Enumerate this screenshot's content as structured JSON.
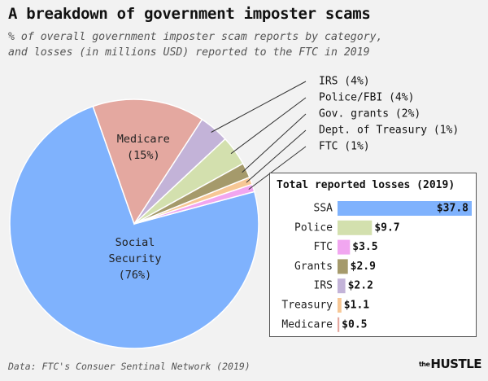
{
  "title": "A breakdown of government imposter scams",
  "subtitle": [
    "% of overall government imposter scam reports by category,",
    "and losses (in millions USD) reported to the FTC in 2019"
  ],
  "footer": "Data: FTC's Consuer Sentinal Network (2019)",
  "brand": {
    "small": "the",
    "name": "HUSTLE"
  },
  "chart_data": [
    {
      "type": "pie",
      "slices": [
        {
          "label_lines": [
            "Social",
            "Security",
            "(76%)"
          ],
          "value": 76,
          "color": "#7fb2fd",
          "inside": true,
          "label_color": "#222222"
        },
        {
          "label_lines": [
            "Medicare",
            "(15%)"
          ],
          "value": 15,
          "color": "#e4a8a0",
          "inside": true,
          "label_color": "#222222"
        },
        {
          "label": "IRS (4%)",
          "value": 4,
          "color": "#c3b3d8",
          "inside": false
        },
        {
          "label": "Police/FBI (4%)",
          "value": 4,
          "color": "#d3e0ae",
          "inside": false
        },
        {
          "label": "Gov. grants (2%)",
          "value": 2,
          "color": "#a59a6b",
          "inside": false
        },
        {
          "label": "Dept. of Treasury (1%)",
          "value": 1,
          "color": "#f7c795",
          "inside": false
        },
        {
          "label": "FTC (1%)",
          "value": 1,
          "color": "#f1a6f0",
          "inside": false
        }
      ]
    },
    {
      "type": "bar",
      "title": "Total reported losses (2019)",
      "categories": [
        "SSA",
        "Police",
        "FTC",
        "Grants",
        "IRS",
        "Treasury",
        "Medicare"
      ],
      "values": [
        37.8,
        9.7,
        3.5,
        2.9,
        2.2,
        1.1,
        0.5
      ],
      "value_labels": [
        "$37.8",
        "$9.7",
        "$3.5",
        "$2.9",
        "$2.2",
        "$1.1",
        "$0.5"
      ],
      "colors": [
        "#7fb2fd",
        "#d3e0ae",
        "#f1a6f0",
        "#a59a6b",
        "#c3b3d8",
        "#f7c795",
        "#e4a8a0"
      ],
      "xlim": [
        0,
        37.8
      ]
    }
  ]
}
